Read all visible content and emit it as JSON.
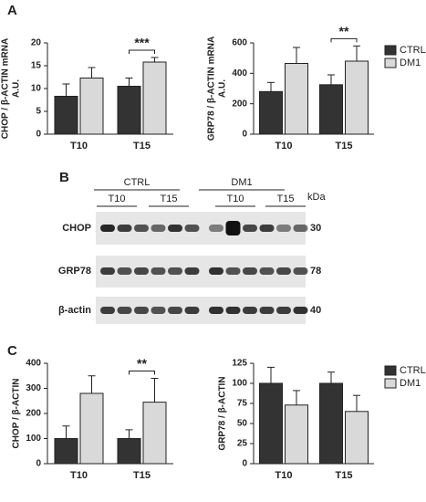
{
  "panels": [
    "A",
    "B",
    "C"
  ],
  "chart_data": [
    {
      "type": "bar",
      "ylabel": [
        "CHOP / β-ACTIN mRNA",
        "A.U."
      ],
      "categories": [
        "T10",
        "T15"
      ],
      "ylim": [
        0,
        20
      ],
      "yticks": [
        0,
        5,
        10,
        15,
        20
      ],
      "annotation": "***",
      "series": [
        {
          "name": "CTRL",
          "color": "#333333",
          "values": [
            8.3,
            10.5
          ],
          "errors": [
            2.7,
            1.8
          ]
        },
        {
          "name": "DM1",
          "color": "#d9d9d9",
          "values": [
            12.3,
            15.8
          ],
          "errors": [
            2.3,
            1.0
          ]
        }
      ]
    },
    {
      "type": "bar",
      "ylabel": [
        "GRP78 / β-ACTIN mRNA",
        "A.U."
      ],
      "categories": [
        "T10",
        "T15"
      ],
      "ylim": [
        0,
        600
      ],
      "yticks": [
        0,
        200,
        400,
        600
      ],
      "annotation": "**",
      "legend": "upper right",
      "series": [
        {
          "name": "CTRL",
          "color": "#333333",
          "values": [
            280,
            325
          ],
          "errors": [
            60,
            65
          ]
        },
        {
          "name": "DM1",
          "color": "#d9d9d9",
          "values": [
            465,
            480
          ],
          "errors": [
            105,
            100
          ]
        }
      ]
    },
    {
      "type": "bar",
      "ylabel": [
        "CHOP / β-ACTIN"
      ],
      "categories": [
        "T10",
        "T15"
      ],
      "ylim": [
        0,
        400
      ],
      "yticks": [
        0,
        100,
        200,
        300,
        400
      ],
      "annotation": "**",
      "series": [
        {
          "name": "CTRL",
          "color": "#333333",
          "values": [
            100,
            100
          ],
          "errors": [
            50,
            35
          ]
        },
        {
          "name": "DM1",
          "color": "#d9d9d9",
          "values": [
            280,
            245
          ],
          "errors": [
            70,
            95
          ]
        }
      ]
    },
    {
      "type": "bar",
      "ylabel": [
        "GRP78 / β-ACTIN"
      ],
      "categories": [
        "T10",
        "T15"
      ],
      "ylim": [
        0,
        125
      ],
      "yticks": [
        0,
        25,
        50,
        75,
        100,
        125
      ],
      "legend": "upper right",
      "series": [
        {
          "name": "CTRL",
          "color": "#333333",
          "values": [
            100,
            100
          ],
          "errors": [
            20,
            14
          ]
        },
        {
          "name": "DM1",
          "color": "#d9d9d9",
          "values": [
            73,
            65
          ],
          "errors": [
            18,
            20
          ]
        }
      ]
    }
  ],
  "blot": {
    "groups": [
      "CTRL",
      "DM1"
    ],
    "timepoints": [
      "T10",
      "T15",
      "T10",
      "T15"
    ],
    "unit": "kDa",
    "rows": [
      {
        "label": "CHOP",
        "kda": 30
      },
      {
        "label": "GRP78",
        "kda": 78
      },
      {
        "label": "β-actin",
        "kda": 40
      }
    ]
  }
}
